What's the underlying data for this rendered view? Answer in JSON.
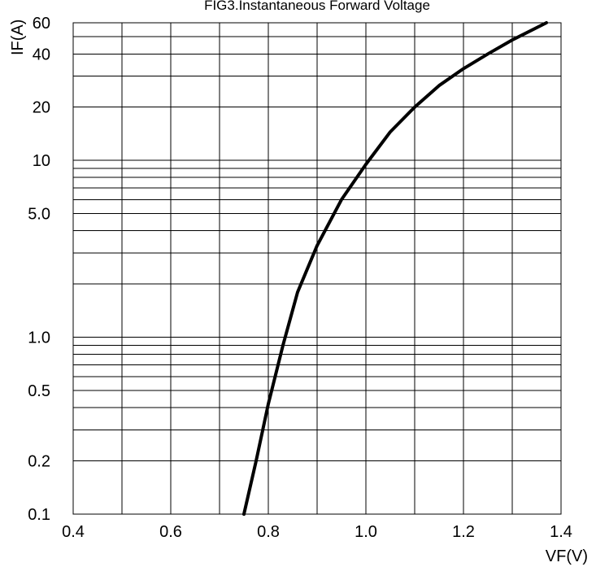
{
  "chart_data": {
    "type": "line",
    "title": "FIG3.Instantaneous Forward Voltage",
    "xlabel": "VF(V)",
    "ylabel": "IF(A)",
    "x_scale": "linear",
    "y_scale": "log",
    "xlim": [
      0.4,
      1.4
    ],
    "ylim": [
      0.1,
      60
    ],
    "grid": true,
    "x_gridlines": [
      0.4,
      0.5,
      0.6,
      0.7,
      0.8,
      0.9,
      1.0,
      1.1,
      1.2,
      1.3,
      1.4
    ],
    "y_gridlines": [
      0.1,
      0.2,
      0.3,
      0.4,
      0.5,
      0.6,
      0.7,
      0.8,
      0.9,
      1,
      2,
      3,
      4,
      5,
      6,
      7,
      8,
      9,
      10,
      20,
      30,
      40,
      50,
      60
    ],
    "x_ticks": [
      {
        "value": 0.4,
        "label": "0.4"
      },
      {
        "value": 0.6,
        "label": "0.6"
      },
      {
        "value": 0.8,
        "label": "0.8"
      },
      {
        "value": 1.0,
        "label": "1.0"
      },
      {
        "value": 1.2,
        "label": "1.2"
      },
      {
        "value": 1.4,
        "label": "1.4"
      }
    ],
    "y_ticks": [
      {
        "value": 0.1,
        "label": "0.1"
      },
      {
        "value": 0.2,
        "label": "0.2"
      },
      {
        "value": 0.5,
        "label": "0.5"
      },
      {
        "value": 1.0,
        "label": "1.0"
      },
      {
        "value": 5.0,
        "label": "5.0"
      },
      {
        "value": 10,
        "label": "10"
      },
      {
        "value": 20,
        "label": "20"
      },
      {
        "value": 40,
        "label": "40"
      },
      {
        "value": 60,
        "label": "60"
      }
    ],
    "series": [
      {
        "color": "#000000",
        "x": [
          0.75,
          0.775,
          0.8,
          0.83,
          0.86,
          0.9,
          0.95,
          1.0,
          1.05,
          1.1,
          1.15,
          1.2,
          1.25,
          1.3,
          1.37
        ],
        "y": [
          0.1,
          0.2,
          0.42,
          0.9,
          1.8,
          3.3,
          6.0,
          9.5,
          14.5,
          20.0,
          26.5,
          33.0,
          40.0,
          48.0,
          60.0
        ]
      }
    ]
  }
}
